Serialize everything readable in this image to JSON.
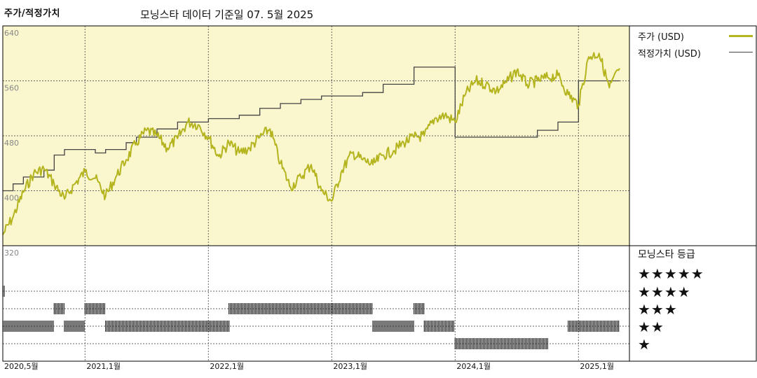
{
  "header": {
    "left_title": "주가/적정가치",
    "subtitle": "모닝스타 데이터 기준일 07. 5월 2025"
  },
  "legend": {
    "price_label": "주가 (USD)",
    "fair_value_label": "적정가치 (USD)",
    "price_color": "#b4b41e",
    "fair_value_color": "#444444",
    "plot_bg": "#faf6cd"
  },
  "rating": {
    "title": "모닝스타 등급",
    "levels": [
      "★★★★★",
      "★★★★",
      "★★★",
      "★★",
      "★"
    ]
  },
  "chart_data": {
    "type": "line",
    "x_axis_labels": [
      "2020,5월",
      "2021,1월",
      "2022,1월",
      "2023,1월",
      "2024,1월",
      "2025,1월"
    ],
    "x_axis_dates": [
      "2020-05",
      "2021-01",
      "2022-01",
      "2023-01",
      "2024-01",
      "2025-01"
    ],
    "x_range": [
      "2020-05",
      "2025-05"
    ],
    "y_tick_labels": [
      "640",
      "560",
      "480",
      "400",
      "320"
    ],
    "ylim": [
      320,
      640
    ],
    "grid": true,
    "legend_position": "top-right",
    "series": [
      {
        "name": "주가 (USD)",
        "points": [
          [
            "2020-05",
            336
          ],
          [
            "2020-06",
            362
          ],
          [
            "2020-07",
            398
          ],
          [
            "2020-08",
            425
          ],
          [
            "2020-09",
            432
          ],
          [
            "2020-10",
            410
          ],
          [
            "2020-11",
            388
          ],
          [
            "2020-12",
            410
          ],
          [
            "2021-01",
            428
          ],
          [
            "2021-02",
            418
          ],
          [
            "2021-03",
            392
          ],
          [
            "2021-04",
            420
          ],
          [
            "2021-05",
            445
          ],
          [
            "2021-06",
            470
          ],
          [
            "2021-07",
            488
          ],
          [
            "2021-08",
            480
          ],
          [
            "2021-09",
            462
          ],
          [
            "2021-10",
            476
          ],
          [
            "2021-11",
            500
          ],
          [
            "2021-12",
            496
          ],
          [
            "2022-01",
            478
          ],
          [
            "2022-02",
            450
          ],
          [
            "2022-03",
            470
          ],
          [
            "2022-04",
            455
          ],
          [
            "2022-05",
            462
          ],
          [
            "2022-06",
            478
          ],
          [
            "2022-07",
            490
          ],
          [
            "2022-08",
            440
          ],
          [
            "2022-09",
            405
          ],
          [
            "2022-10",
            420
          ],
          [
            "2022-11",
            438
          ],
          [
            "2022-12",
            400
          ],
          [
            "2023-01",
            385
          ],
          [
            "2023-02",
            430
          ],
          [
            "2023-03",
            455
          ],
          [
            "2023-04",
            445
          ],
          [
            "2023-05",
            438
          ],
          [
            "2023-06",
            452
          ],
          [
            "2023-07",
            458
          ],
          [
            "2023-08",
            470
          ],
          [
            "2023-09",
            478
          ],
          [
            "2023-10",
            480
          ],
          [
            "2023-11",
            505
          ],
          [
            "2023-12",
            510
          ],
          [
            "2024-01",
            500
          ],
          [
            "2024-02",
            540
          ],
          [
            "2024-03",
            560
          ],
          [
            "2024-04",
            555
          ],
          [
            "2024-05",
            545
          ],
          [
            "2024-06",
            558
          ],
          [
            "2024-07",
            575
          ],
          [
            "2024-08",
            555
          ],
          [
            "2024-09",
            560
          ],
          [
            "2024-10",
            565
          ],
          [
            "2024-11",
            568
          ],
          [
            "2024-12",
            540
          ],
          [
            "2025-01",
            525
          ],
          [
            "2025-02",
            595
          ],
          [
            "2025-03",
            600
          ],
          [
            "2025-04",
            550
          ],
          [
            "2025-05",
            578
          ]
        ]
      },
      {
        "name": "적정가치 (USD)",
        "steps": [
          [
            "2020-05",
            400
          ],
          [
            "2020-06",
            410
          ],
          [
            "2020-07",
            420
          ],
          [
            "2020-09",
            430
          ],
          [
            "2020-10",
            452
          ],
          [
            "2020-11",
            460
          ],
          [
            "2021-02",
            455
          ],
          [
            "2021-03",
            460
          ],
          [
            "2021-05",
            470
          ],
          [
            "2021-06",
            478
          ],
          [
            "2021-08",
            490
          ],
          [
            "2021-10",
            500
          ],
          [
            "2022-01",
            505
          ],
          [
            "2022-04",
            510
          ],
          [
            "2022-06",
            520
          ],
          [
            "2022-08",
            527
          ],
          [
            "2022-10",
            533
          ],
          [
            "2022-12",
            538
          ],
          [
            "2023-04",
            543
          ],
          [
            "2023-06",
            555
          ],
          [
            "2023-09",
            580
          ],
          [
            "2023-11",
            580
          ],
          [
            "2024-01",
            580
          ],
          [
            "2024-01",
            478
          ],
          [
            "2024-03",
            478
          ],
          [
            "2024-08",
            478
          ],
          [
            "2024-09",
            488
          ],
          [
            "2024-11",
            500
          ],
          [
            "2025-01",
            560
          ],
          [
            "2025-05",
            560
          ]
        ]
      }
    ],
    "rating_history": [
      {
        "stars": 5,
        "ranges": [
          [
            "2020-05",
            "2020-05"
          ]
        ]
      },
      {
        "stars": 4,
        "ranges": [
          [
            "2020-10",
            "2020-11"
          ],
          [
            "2021-01",
            "2021-03"
          ],
          [
            "2022-03",
            "2023-05"
          ],
          [
            "2023-09",
            "2023-10"
          ]
        ]
      },
      {
        "stars": 3,
        "ranges": [
          [
            "2020-05",
            "2020-10"
          ],
          [
            "2020-11",
            "2021-01"
          ],
          [
            "2021-03",
            "2022-03"
          ],
          [
            "2023-05",
            "2023-09"
          ],
          [
            "2023-10",
            "2024-01"
          ],
          [
            "2024-12",
            "2025-05"
          ]
        ]
      },
      {
        "stars": 2,
        "ranges": [
          [
            "2024-01",
            "2024-10"
          ]
        ]
      },
      {
        "stars": 1,
        "ranges": []
      }
    ]
  }
}
